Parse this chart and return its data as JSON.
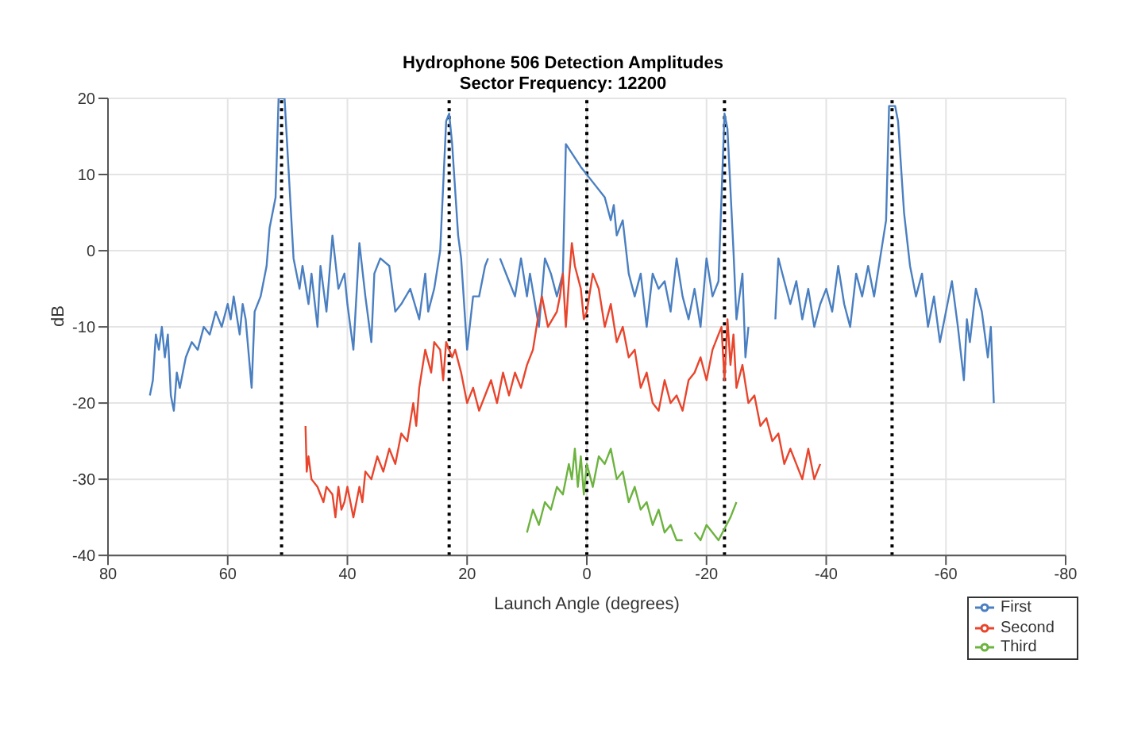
{
  "chart_data": {
    "type": "line",
    "title": "Hydrophone 506 Detection Amplitudes",
    "subtitle": "Sector Frequency: 12200",
    "xlabel": "Launch Angle (degrees)",
    "ylabel": "dB",
    "xlim": [
      80,
      -80
    ],
    "xticks": [
      80,
      60,
      40,
      20,
      0,
      -20,
      -40,
      -60,
      -80
    ],
    "ylim": [
      -40,
      20
    ],
    "yticks": [
      -40,
      -30,
      -20,
      -10,
      0,
      10,
      20
    ],
    "grid": true,
    "legend": "bottom right",
    "line_style": "solid",
    "ref_lines": [
      {
        "axis": "x",
        "value": 51,
        "color": "#000000",
        "line_style": "dotted"
      },
      {
        "axis": "x",
        "value": 23,
        "color": "#000000",
        "line_style": "dotted"
      },
      {
        "axis": "x",
        "value": 0,
        "color": "#000000",
        "line_style": "dotted"
      },
      {
        "axis": "x",
        "value": -23,
        "color": "#000000",
        "line_style": "dotted"
      },
      {
        "axis": "x",
        "value": -51,
        "color": "#000000",
        "line_style": "dotted"
      }
    ],
    "series": [
      {
        "name": "First",
        "color": "#4a7fc1",
        "x": [
          73,
          72.5,
          72,
          71.5,
          71,
          70.5,
          70,
          69.5,
          69,
          68.5,
          68,
          67,
          66,
          65,
          64,
          63,
          62,
          61,
          60,
          59.5,
          59,
          58,
          57.5,
          57,
          56,
          55.5,
          54.5,
          53.5,
          53,
          52,
          51.5,
          50.5,
          50,
          49,
          48,
          47.5,
          46.5,
          46,
          45,
          44.5,
          43.5,
          42.5,
          41.5,
          40.5,
          40,
          39,
          38,
          37,
          36,
          35.5,
          34.5,
          33,
          32,
          31,
          29.5,
          28,
          27,
          26.5,
          25.5,
          24.5,
          23.5,
          23,
          22.5,
          21.5,
          21,
          20,
          19,
          18,
          17,
          16.5,
          15.5,
          14.5,
          13,
          12,
          11,
          10,
          9.5,
          8,
          7,
          6,
          5,
          4,
          3.5,
          1,
          -1,
          -3,
          -4,
          -4.5,
          -5,
          -6,
          -7,
          -8,
          -9,
          -10,
          -11,
          -12,
          -13,
          -14,
          -15,
          -16,
          -17,
          -18,
          -19,
          -20,
          -21,
          -22,
          -23,
          -23.5,
          -24.5,
          -25,
          -26,
          -26.5,
          -27,
          -29,
          -31.5,
          -32,
          -33,
          -34,
          -35,
          -36,
          -37,
          -38,
          -39,
          -40,
          -41,
          -42,
          -43,
          -44,
          -45,
          -46,
          -47,
          -48,
          -49,
          -50,
          -50.5,
          -51.5,
          -52,
          -53,
          -54,
          -55,
          -56,
          -57,
          -58,
          -59,
          -60,
          -61,
          -62,
          -63,
          -63.5,
          -64,
          -65,
          -66,
          -67,
          -67.5,
          -68
        ],
        "values": [
          -19,
          -17,
          -11,
          -13,
          -10,
          -14,
          -11,
          -19,
          -21,
          -16,
          -18,
          -14,
          -12,
          -13,
          -10,
          -11,
          -8,
          -10,
          -7,
          -9,
          -6,
          -11,
          -7,
          -9,
          -18,
          -8,
          -6,
          -2,
          3,
          7,
          20,
          20,
          13,
          -1,
          -5,
          -2,
          -7,
          -3,
          -10,
          -2,
          -8,
          2,
          -5,
          -3,
          -7,
          -13,
          1,
          -6,
          -12,
          -3,
          -1,
          -2,
          -8,
          -7,
          -5,
          -9,
          -3,
          -8,
          -5,
          0,
          17,
          18,
          14,
          2,
          -1,
          -13,
          -6,
          -6,
          -2,
          -1,
          null,
          -1,
          -4,
          -6,
          -1,
          -6,
          -3,
          -10,
          -1,
          -3,
          -6,
          -3,
          14,
          11,
          9,
          7,
          4,
          6,
          2,
          4,
          -3,
          -6,
          -3,
          -10,
          -3,
          -5,
          -4,
          -8,
          -1,
          -6,
          -9,
          -5,
          -10,
          -1,
          -6,
          -4,
          18,
          16,
          0,
          -9,
          -3,
          -14,
          -10,
          null,
          -9,
          -1,
          -4,
          -7,
          -4,
          -9,
          -5,
          -10,
          -7,
          -5,
          -8,
          -2,
          -7,
          -10,
          -3,
          -6,
          -2,
          -6,
          -1,
          4,
          19,
          19,
          17,
          5,
          -2,
          -6,
          -3,
          -10,
          -6,
          -12,
          -8,
          -4,
          -10,
          -17,
          -9,
          -12,
          -5,
          -8,
          -14,
          -10,
          -20
        ]
      },
      {
        "name": "Second",
        "color": "#e8452c",
        "x": [
          47,
          46.8,
          46.5,
          46,
          45,
          44,
          43.5,
          42.5,
          42,
          41.5,
          41,
          40.5,
          40,
          39,
          38,
          37.5,
          37,
          36,
          35,
          34,
          33,
          32,
          31,
          30,
          29,
          28.5,
          28,
          27,
          26,
          25.5,
          24.5,
          24,
          23.5,
          22.5,
          22,
          21,
          20,
          19,
          18,
          17,
          16,
          15,
          14,
          13,
          12,
          11,
          10,
          9,
          8,
          7.5,
          6.5,
          5,
          4.5,
          4,
          3.5,
          3,
          2.5,
          2,
          1,
          0.5,
          0,
          -1,
          -2,
          -3,
          -4,
          -5,
          -6,
          -7,
          -8,
          -9,
          -10,
          -11,
          -12,
          -13,
          -14,
          -15,
          -16,
          -17,
          -18,
          -19,
          -20,
          -21,
          -22,
          -22.5,
          -23,
          -23.5,
          -24,
          -24.5,
          -25,
          -26,
          -27,
          -28,
          -29,
          -30,
          -31,
          -32,
          -33,
          -34,
          -35,
          -36,
          -37,
          -38,
          -39
        ],
        "values": [
          -23,
          -29,
          -27,
          -30,
          -31,
          -33,
          -31,
          -32,
          -35,
          -31,
          -34,
          -33,
          -31,
          -35,
          -31,
          -33,
          -29,
          -30,
          -27,
          -29,
          -26,
          -28,
          -24,
          -25,
          -20,
          -23,
          -18,
          -13,
          -16,
          -12,
          -13,
          -17,
          -12,
          -14,
          -13,
          -16,
          -20,
          -18,
          -21,
          -19,
          -17,
          -20,
          -16,
          -19,
          -16,
          -18,
          -15,
          -13,
          -8,
          -6,
          -10,
          -8,
          -6,
          -3,
          -10,
          -4,
          1,
          -2,
          -5,
          -9,
          -8,
          -3,
          -5,
          -10,
          -7,
          -12,
          -10,
          -14,
          -13,
          -18,
          -16,
          -20,
          -21,
          -17,
          -20,
          -19,
          -21,
          -17,
          -16,
          -14,
          -17,
          -13,
          -11,
          -10,
          -17,
          -9,
          -15,
          -11,
          -18,
          -15,
          -20,
          -19,
          -23,
          -22,
          -25,
          -24,
          -28,
          -26,
          -28,
          -30,
          -26,
          -30,
          -28
        ]
      },
      {
        "name": "Third",
        "color": "#6cb33f",
        "x": [
          10,
          9,
          8,
          7,
          6,
          5,
          4,
          3,
          2.5,
          2,
          1.5,
          1,
          0.5,
          0,
          -1,
          -2,
          -3,
          -4,
          -5,
          -6,
          -7,
          -8,
          -9,
          -10,
          -11,
          -12,
          -13,
          -14,
          -15,
          -16,
          -17,
          -18,
          -19,
          -20,
          -22,
          -24,
          -25
        ],
        "values": [
          -37,
          -34,
          -36,
          -33,
          -34,
          -31,
          -32,
          -28,
          -30,
          -26,
          -31,
          -27,
          -32,
          -28,
          -31,
          -27,
          -28,
          -26,
          -30,
          -29,
          -33,
          -31,
          -34,
          -33,
          -36,
          -34,
          -37,
          -36,
          -38,
          -38,
          null,
          -37,
          -38,
          -36,
          -38,
          -35,
          -33
        ]
      }
    ]
  }
}
